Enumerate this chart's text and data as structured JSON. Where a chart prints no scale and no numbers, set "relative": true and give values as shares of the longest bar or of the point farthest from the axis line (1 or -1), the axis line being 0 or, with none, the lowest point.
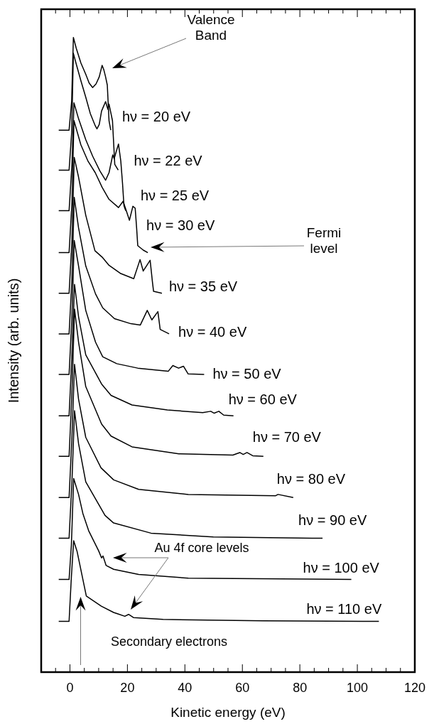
{
  "chart_data": {
    "type": "line",
    "relative": true,
    "xlabel": "Kinetic energy (eV)",
    "ylabel": "Intensity (arb. units)",
    "xlim": [
      -10,
      120
    ],
    "xticks": [
      {
        "value": -5,
        "label": null
      },
      0,
      {
        "value": 5,
        "label": null
      },
      {
        "value": 10,
        "label": null
      },
      {
        "value": 15,
        "label": null
      },
      20,
      {
        "value": 25,
        "label": null
      },
      {
        "value": 30,
        "label": null
      },
      {
        "value": 35,
        "label": null
      },
      40,
      {
        "value": 45,
        "label": null
      },
      {
        "value": 50,
        "label": null
      },
      {
        "value": 55,
        "label": null
      },
      60,
      {
        "value": 65,
        "label": null
      },
      {
        "value": 70,
        "label": null
      },
      {
        "value": 75,
        "label": null
      },
      80,
      {
        "value": 85,
        "label": null
      },
      {
        "value": 90,
        "label": null
      },
      {
        "value": 95,
        "label": null
      },
      100,
      {
        "value": 105,
        "label": null
      },
      {
        "value": 110,
        "label": null
      },
      {
        "value": 115,
        "label": null
      },
      120
    ],
    "tick_labels": "x",
    "marker": "none",
    "line_style": "solid",
    "annotations": [
      "Valence Band",
      "Fermi level",
      "Au 4f core levels",
      "Secondary electrons"
    ],
    "series": [
      {
        "name": "hν = 20 eV",
        "color": "#000000",
        "x": [
          -3.9,
          -0.3,
          0.6,
          1.2,
          2.2,
          3.8,
          5.5,
          6.7,
          7.9,
          9.1,
          10.2,
          10.8,
          11.2,
          11.8,
          12.4,
          13.0,
          13.6,
          14.2
        ],
        "values": [
          0.854,
          0.854,
          0.9,
          1.0,
          0.983,
          0.96,
          0.942,
          0.928,
          0.921,
          0.927,
          0.938,
          0.949,
          0.956,
          0.949,
          0.938,
          0.925,
          0.869,
          0.854
        ]
      },
      {
        "name": "hν = 22 eV",
        "color": "#000000",
        "x": [
          -3.9,
          -0.3,
          0.6,
          1.2,
          2.2,
          3.8,
          5.5,
          7.1,
          8.8,
          9.4,
          10.2,
          11.0,
          12.4,
          13.2,
          13.6,
          14.8,
          15.6,
          16.8
        ],
        "values": [
          0.791,
          0.791,
          0.85,
          0.975,
          0.958,
          0.932,
          0.906,
          0.88,
          0.861,
          0.856,
          0.863,
          0.884,
          0.899,
          0.887,
          0.895,
          0.869,
          0.8,
          0.791
        ]
      },
      {
        "name": "hν = 25 eV",
        "color": "#000000",
        "x": [
          -3.9,
          -0.3,
          0.7,
          1.4,
          3.0,
          5.5,
          7.9,
          10.4,
          12.4,
          13.6,
          14.9,
          15.4,
          16.1,
          16.9,
          17.7,
          18.3,
          18.8,
          19.4
        ],
        "values": [
          0.727,
          0.727,
          0.8,
          0.897,
          0.872,
          0.839,
          0.813,
          0.79,
          0.775,
          0.787,
          0.815,
          0.809,
          0.82,
          0.832,
          0.805,
          0.77,
          0.735,
          0.727
        ]
      },
      {
        "name": "hν = 30 eV",
        "color": "#000000",
        "x": [
          -3.9,
          -0.3,
          0.7,
          1.4,
          3.8,
          6.3,
          8.8,
          11.2,
          13.6,
          16.9,
          18.5,
          19.6,
          20.7,
          21.9,
          22.7,
          23.2,
          23.6,
          25.5,
          27.1
        ],
        "values": [
          0.661,
          0.661,
          0.74,
          0.869,
          0.831,
          0.805,
          0.787,
          0.764,
          0.745,
          0.732,
          0.742,
          0.727,
          0.712,
          0.734,
          0.731,
          0.7,
          0.672,
          0.665,
          0.661
        ]
      },
      {
        "name": "hν = 35 eV",
        "color": "#000000",
        "x": [
          -3.9,
          -0.3,
          0.7,
          1.5,
          3.0,
          5.5,
          8.7,
          11.2,
          13.6,
          17.7,
          22.2,
          24.4,
          25.5,
          27.9,
          28.7,
          29.1,
          32.0
        ],
        "values": [
          0.597,
          0.597,
          0.68,
          0.811,
          0.78,
          0.72,
          0.664,
          0.654,
          0.641,
          0.628,
          0.62,
          0.65,
          0.632,
          0.649,
          0.615,
          0.6,
          0.597
        ]
      },
      {
        "name": "hν = 40 eV",
        "color": "#000000",
        "x": [
          -3.9,
          -0.3,
          0.7,
          1.5,
          3.0,
          5.5,
          8.9,
          11.4,
          15.5,
          21.2,
          24.5,
          26.9,
          28.5,
          30.6,
          31.4,
          34.5
        ],
        "values": [
          0.533,
          0.533,
          0.62,
          0.748,
          0.7,
          0.64,
          0.596,
          0.574,
          0.557,
          0.549,
          0.547,
          0.57,
          0.555,
          0.568,
          0.54,
          0.533
        ]
      },
      {
        "name": "hν = 50 eV",
        "color": "#000000",
        "x": [
          -3.9,
          -0.3,
          0.7,
          1.5,
          3.0,
          5.5,
          8.9,
          11.4,
          16.3,
          23.6,
          34.2,
          35.8,
          37.8,
          39.5,
          41.1,
          46.7
        ],
        "values": [
          0.469,
          0.469,
          0.56,
          0.68,
          0.64,
          0.57,
          0.52,
          0.497,
          0.486,
          0.479,
          0.474,
          0.483,
          0.479,
          0.482,
          0.47,
          0.469
        ]
      },
      {
        "name": "hν = 60 eV",
        "color": "#000000",
        "x": [
          -3.9,
          -0.3,
          0.7,
          1.6,
          3.0,
          5.5,
          11.0,
          14.3,
          21.6,
          33.9,
          46.2,
          49.0,
          50.2,
          51.8,
          53.5,
          56.9
        ],
        "values": [
          0.404,
          0.404,
          0.5,
          0.611,
          0.56,
          0.5,
          0.454,
          0.436,
          0.421,
          0.413,
          0.409,
          0.411,
          0.408,
          0.411,
          0.405,
          0.404
        ]
      },
      {
        "name": "hν = 70 eV",
        "color": "#000000",
        "x": [
          -3.9,
          -0.3,
          0.7,
          1.6,
          3.0,
          5.5,
          11.0,
          14.3,
          21.6,
          37.9,
          56.7,
          59.1,
          60.3,
          61.6,
          63.6,
          67.3
        ],
        "values": [
          0.34,
          0.34,
          0.44,
          0.572,
          0.52,
          0.45,
          0.391,
          0.372,
          0.355,
          0.344,
          0.342,
          0.346,
          0.343,
          0.346,
          0.341,
          0.34
        ]
      },
      {
        "name": "hν = 80 eV",
        "color": "#000000",
        "x": [
          -3.9,
          -0.3,
          0.7,
          1.6,
          3.0,
          5.5,
          10.8,
          15.2,
          23.9,
          41.2,
          71.6,
          72.4,
          77.7
        ],
        "values": [
          0.275,
          0.275,
          0.37,
          0.485,
          0.43,
          0.37,
          0.322,
          0.303,
          0.288,
          0.28,
          0.278,
          0.28,
          0.275
        ]
      },
      {
        "name": "hν = 90 eV",
        "color": "#000000",
        "x": [
          -3.9,
          -0.3,
          0.7,
          1.6,
          3.0,
          5.5,
          12.2,
          15.2,
          28.2,
          49.9,
          84.2,
          87.9
        ],
        "values": [
          0.211,
          0.211,
          0.3,
          0.412,
          0.36,
          0.3,
          0.247,
          0.235,
          0.219,
          0.213,
          0.211,
          0.211
        ]
      },
      {
        "name": "hν = 100 eV",
        "color": "#000000",
        "x": [
          -3.9,
          -0.3,
          0.5,
          1.3,
          3.0,
          4.5,
          6.5,
          10.0,
          11.0,
          11.5,
          12.6,
          15.2,
          23.9,
          41.2,
          97.9
        ],
        "values": [
          0.146,
          0.146,
          0.2,
          0.305,
          0.28,
          0.25,
          0.223,
          0.191,
          0.18,
          0.183,
          0.168,
          0.162,
          0.154,
          0.148,
          0.146
        ]
      },
      {
        "name": "hν = 110 eV",
        "color": "#000000",
        "x": [
          -3.9,
          -0.3,
          0.5,
          1.3,
          2.5,
          5.7,
          10.9,
          15.2,
          16.5,
          19.1,
          20.4,
          22.1,
          32.4,
          67.1,
          107.5
        ],
        "values": [
          0.08,
          0.08,
          0.15,
          0.207,
          0.19,
          0.12,
          0.104,
          0.094,
          0.092,
          0.088,
          0.091,
          0.086,
          0.083,
          0.081,
          0.08
        ]
      }
    ]
  }
}
